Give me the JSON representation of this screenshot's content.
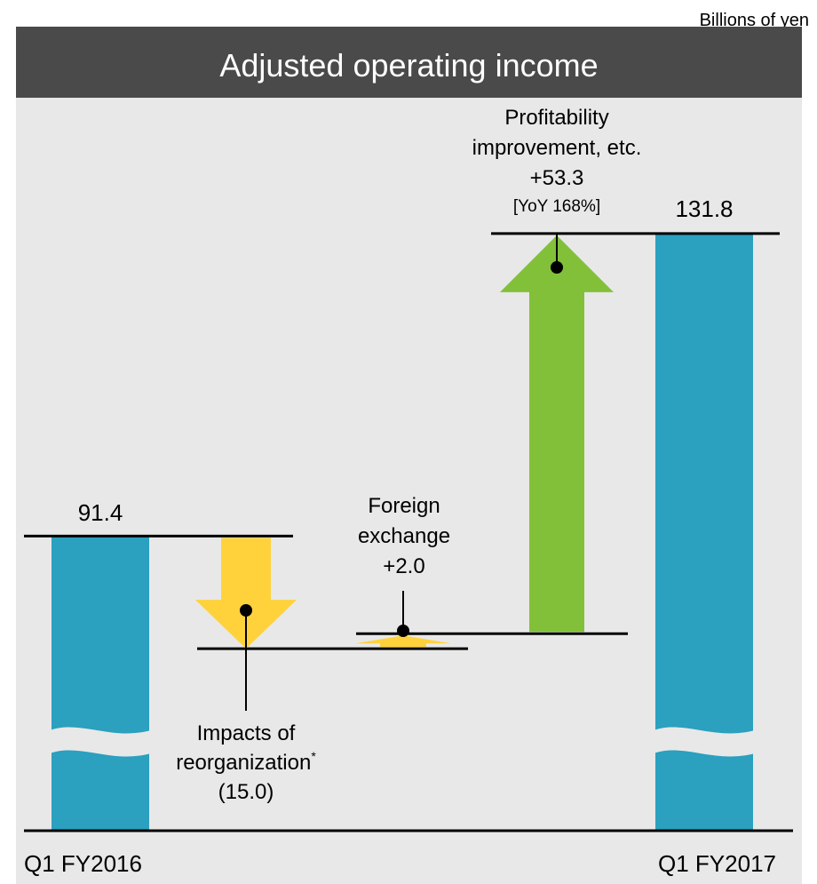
{
  "unit_label": "Billions of yen",
  "colors": {
    "background": "#e8e8e8",
    "title_bar": "#4a4a4a",
    "bar": "#2ba0bf",
    "decrease": "#ffd23c",
    "increase": "#82c03a",
    "axis": "#000000"
  },
  "chart_data": {
    "type": "bar",
    "subtype": "waterfall",
    "title": "Adjusted operating income",
    "unit": "Billions of yen",
    "axis_broken": true,
    "totals": [
      {
        "key": "start",
        "category": "Q1 FY2016",
        "value": 91.4,
        "label": "91.4"
      },
      {
        "key": "end",
        "category": "Q1 FY2017",
        "value": 131.8,
        "label": "131.8"
      }
    ],
    "steps": [
      {
        "key": "reorg",
        "delta": -15.0,
        "label_lines": [
          "Impacts of",
          "reorganization",
          "(15.0)"
        ],
        "footnote_mark": "*"
      },
      {
        "key": "fx",
        "delta": 2.0,
        "label_lines": [
          "Foreign",
          "exchange",
          "+2.0"
        ]
      },
      {
        "key": "profit",
        "delta": 53.3,
        "label_lines": [
          "Profitability",
          "improvement, etc.",
          "+53.3"
        ],
        "sub_label": "[YoY 168%]"
      }
    ]
  }
}
